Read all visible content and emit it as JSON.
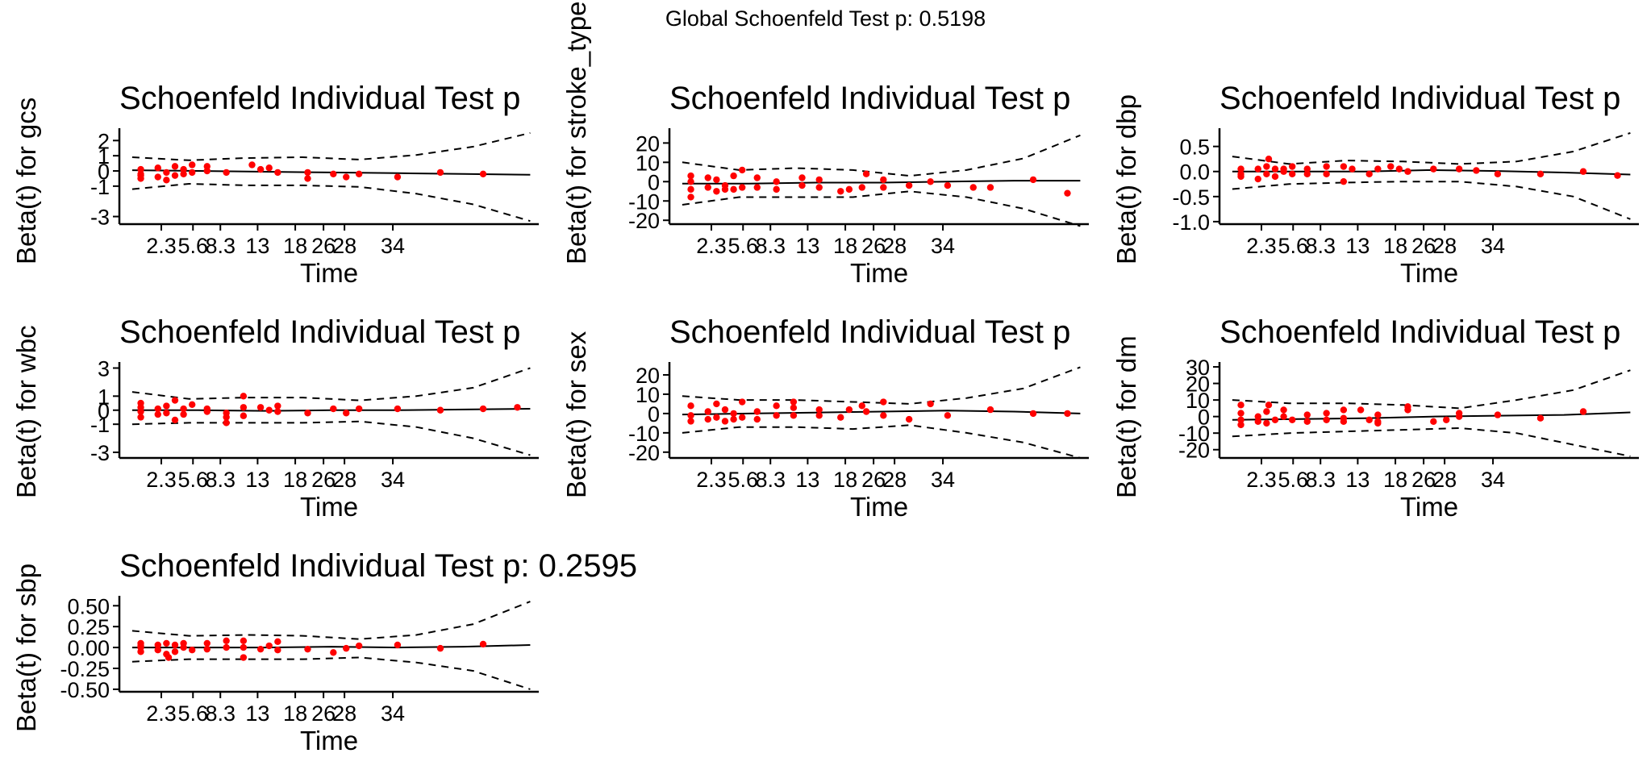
{
  "global_title": "Global Schoenfeld Test p: 0.5198",
  "chart_data": [
    {
      "type": "scatter",
      "title": "Schoenfeld Individual Test p",
      "ylabel": "Beta(t) for gcs",
      "xlabel": "Time",
      "x_ticks": [
        "2.3",
        "5.6",
        "8.3",
        "13",
        "18",
        "26",
        "28",
        "34"
      ],
      "y_ticks": [
        2,
        1,
        0,
        -1,
        -3
      ],
      "y_tick_labels": [
        "2",
        "1",
        "0",
        "-1",
        "-3"
      ],
      "ylim": [
        -3.5,
        2.6
      ],
      "fit": [
        0.05,
        0.0,
        -0.05,
        -0.1,
        -0.15,
        -0.2,
        -0.25
      ],
      "upper": [
        0.9,
        0.7,
        0.85,
        0.9,
        0.75,
        1.05,
        1.6,
        2.5
      ],
      "lower": [
        -1.2,
        -0.85,
        -0.95,
        -0.95,
        -1.05,
        -1.5,
        -2.2,
        -3.3
      ],
      "points": [
        [
          0.5,
          -0.5
        ],
        [
          0.5,
          -0.3
        ],
        [
          0.5,
          0.1
        ],
        [
          0.5,
          -0.2
        ],
        [
          0.9,
          -0.4
        ],
        [
          0.9,
          0.2
        ],
        [
          1.1,
          -0.1
        ],
        [
          1.1,
          -0.6
        ],
        [
          1.3,
          0.3
        ],
        [
          1.3,
          -0.3
        ],
        [
          1.5,
          0.1
        ],
        [
          1.5,
          -0.2
        ],
        [
          1.7,
          0.4
        ],
        [
          1.7,
          -0.1
        ],
        [
          2.05,
          0.0
        ],
        [
          2.05,
          0.3
        ],
        [
          2.5,
          -0.1
        ],
        [
          3.1,
          0.4
        ],
        [
          3.3,
          0.1
        ],
        [
          3.5,
          0.2
        ],
        [
          3.7,
          -0.1
        ],
        [
          4.4,
          -0.1
        ],
        [
          4.4,
          -0.5
        ],
        [
          5.0,
          -0.2
        ],
        [
          5.3,
          -0.4
        ],
        [
          5.6,
          -0.2
        ],
        [
          6.5,
          -0.4
        ],
        [
          7.5,
          -0.1
        ],
        [
          8.5,
          -0.2
        ]
      ]
    },
    {
      "type": "scatter",
      "title": "Schoenfeld Individual Test p",
      "ylabel": "Beta(t) for stroke_type",
      "xlabel": "Time",
      "x_ticks": [
        "2.3",
        "5.6",
        "8.3",
        "13",
        "18",
        "26",
        "28",
        "34"
      ],
      "y_ticks": [
        20,
        10,
        0,
        -10,
        -20
      ],
      "y_tick_labels": [
        "20",
        "10",
        "0",
        "-10",
        "-20"
      ],
      "ylim": [
        -22,
        26
      ],
      "fit": [
        -1.0,
        -1.0,
        -0.5,
        -0.5,
        0.0,
        0.5,
        0.5
      ],
      "upper": [
        10,
        6,
        7,
        6,
        3,
        6,
        12,
        24
      ],
      "lower": [
        -12,
        -8,
        -8,
        -8,
        -5,
        -8,
        -14,
        -23
      ],
      "points": [
        [
          0.5,
          -8
        ],
        [
          0.5,
          -4
        ],
        [
          0.5,
          0
        ],
        [
          0.5,
          3
        ],
        [
          0.9,
          2
        ],
        [
          0.9,
          -3
        ],
        [
          1.1,
          -5
        ],
        [
          1.1,
          1
        ],
        [
          1.3,
          -2
        ],
        [
          1.3,
          -4
        ],
        [
          1.5,
          3
        ],
        [
          1.5,
          -4
        ],
        [
          1.7,
          6
        ],
        [
          1.7,
          -3
        ],
        [
          2.05,
          2
        ],
        [
          2.05,
          -3
        ],
        [
          2.5,
          0
        ],
        [
          2.5,
          -4
        ],
        [
          3.1,
          -2
        ],
        [
          3.1,
          2
        ],
        [
          3.5,
          1
        ],
        [
          3.5,
          -3
        ],
        [
          4.0,
          -5
        ],
        [
          4.2,
          -4
        ],
        [
          4.5,
          -3
        ],
        [
          4.6,
          4
        ],
        [
          5.0,
          -3
        ],
        [
          5.0,
          1
        ],
        [
          5.6,
          -2
        ],
        [
          6.1,
          0
        ],
        [
          6.5,
          -2
        ],
        [
          7.1,
          -3
        ],
        [
          7.5,
          -3
        ],
        [
          8.5,
          1
        ],
        [
          9.3,
          -6
        ]
      ]
    },
    {
      "type": "scatter",
      "title": "Schoenfeld Individual Test p",
      "ylabel": "Beta(t) for dbp",
      "xlabel": "Time",
      "x_ticks": [
        "2.3",
        "5.6",
        "8.3",
        "13",
        "18",
        "26",
        "28",
        "34"
      ],
      "y_ticks": [
        0.5,
        0.0,
        -0.5,
        -1.0
      ],
      "y_tick_labels": [
        "0.5",
        "0.0",
        "-0.5",
        "-1.0"
      ],
      "ylim": [
        -1.05,
        0.8
      ],
      "fit": [
        0.0,
        0.0,
        0.0,
        0.03,
        0.01,
        -0.02,
        -0.06
      ],
      "upper": [
        0.3,
        0.15,
        0.22,
        0.2,
        0.15,
        0.2,
        0.4,
        0.77
      ],
      "lower": [
        -0.35,
        -0.25,
        -0.22,
        -0.2,
        -0.2,
        -0.3,
        -0.5,
        -0.95
      ],
      "points": [
        [
          0.5,
          -0.1
        ],
        [
          0.5,
          0.05
        ],
        [
          0.5,
          -0.05
        ],
        [
          0.9,
          -0.15
        ],
        [
          0.9,
          0.05
        ],
        [
          1.1,
          0.1
        ],
        [
          1.1,
          -0.05
        ],
        [
          1.15,
          0.25
        ],
        [
          1.3,
          -0.1
        ],
        [
          1.3,
          0.05
        ],
        [
          1.5,
          0.0
        ],
        [
          1.5,
          0.05
        ],
        [
          1.7,
          -0.05
        ],
        [
          1.7,
          0.1
        ],
        [
          2.05,
          0.05
        ],
        [
          2.05,
          -0.05
        ],
        [
          2.5,
          0.1
        ],
        [
          2.5,
          -0.05
        ],
        [
          2.9,
          0.1
        ],
        [
          2.9,
          -0.2
        ],
        [
          3.1,
          0.05
        ],
        [
          3.5,
          -0.05
        ],
        [
          3.7,
          0.05
        ],
        [
          4.0,
          0.1
        ],
        [
          4.2,
          0.05
        ],
        [
          4.4,
          0.0
        ],
        [
          5.0,
          0.05
        ],
        [
          5.6,
          0.05
        ],
        [
          6.0,
          0.02
        ],
        [
          6.5,
          -0.05
        ],
        [
          7.5,
          -0.05
        ],
        [
          8.5,
          0.0
        ],
        [
          9.3,
          -0.08
        ]
      ]
    },
    {
      "type": "scatter",
      "title": "Schoenfeld Individual Test p",
      "ylabel": "Beta(t) for wbc",
      "xlabel": "Time",
      "x_ticks": [
        "2.3",
        "5.6",
        "8.3",
        "13",
        "18",
        "26",
        "28",
        "34"
      ],
      "y_ticks": [
        3,
        1,
        0,
        -1,
        -3
      ],
      "y_tick_labels": [
        "3",
        "1",
        "0",
        "-1",
        "-3"
      ],
      "ylim": [
        -3.4,
        3.2
      ],
      "fit": [
        0.0,
        0.0,
        -0.05,
        0.0,
        0.0,
        0.05,
        0.1
      ],
      "upper": [
        1.3,
        0.8,
        0.9,
        0.9,
        0.7,
        1.0,
        1.6,
        3.0
      ],
      "lower": [
        -1.0,
        -0.9,
        -0.9,
        -0.9,
        -0.8,
        -1.2,
        -2.0,
        -3.2
      ],
      "points": [
        [
          0.5,
          -0.5
        ],
        [
          0.5,
          0.2
        ],
        [
          0.5,
          0.5
        ],
        [
          0.5,
          -0.1
        ],
        [
          0.9,
          0.1
        ],
        [
          0.9,
          -0.3
        ],
        [
          1.1,
          -0.2
        ],
        [
          1.1,
          0.3
        ],
        [
          1.3,
          0.7
        ],
        [
          1.3,
          -0.7
        ],
        [
          1.5,
          0.1
        ],
        [
          1.5,
          -0.3
        ],
        [
          1.7,
          0.4
        ],
        [
          2.05,
          0.1
        ],
        [
          2.05,
          -0.1
        ],
        [
          2.5,
          -0.2
        ],
        [
          2.5,
          -0.9
        ],
        [
          2.5,
          -0.5
        ],
        [
          2.9,
          -0.4
        ],
        [
          2.9,
          1.0
        ],
        [
          2.9,
          0.2
        ],
        [
          3.3,
          0.2
        ],
        [
          3.5,
          0.0
        ],
        [
          3.7,
          0.3
        ],
        [
          3.7,
          -0.1
        ],
        [
          4.4,
          -0.2
        ],
        [
          5.0,
          0.1
        ],
        [
          5.3,
          -0.2
        ],
        [
          5.6,
          0.1
        ],
        [
          6.5,
          0.1
        ],
        [
          7.5,
          0.0
        ],
        [
          8.5,
          0.1
        ],
        [
          9.3,
          0.2
        ]
      ]
    },
    {
      "type": "scatter",
      "title": "Schoenfeld Individual Test p",
      "ylabel": "Beta(t) for sex",
      "xlabel": "Time",
      "x_ticks": [
        "2.3",
        "5.6",
        "8.3",
        "13",
        "18",
        "26",
        "28",
        "34"
      ],
      "y_ticks": [
        20,
        10,
        0,
        -10,
        -20
      ],
      "y_tick_labels": [
        "20",
        "10",
        "0",
        "-10",
        "-20"
      ],
      "ylim": [
        -23,
        25
      ],
      "fit": [
        -0.5,
        0.0,
        0.5,
        1.0,
        1.5,
        1.0,
        0.0
      ],
      "upper": [
        9,
        7,
        7,
        6,
        5,
        8,
        13,
        24
      ],
      "lower": [
        -10,
        -7,
        -7,
        -8,
        -6,
        -10,
        -15,
        -23
      ],
      "points": [
        [
          0.5,
          -1
        ],
        [
          0.5,
          4
        ],
        [
          0.5,
          -4
        ],
        [
          0.9,
          1
        ],
        [
          0.9,
          -3
        ],
        [
          1.1,
          -2
        ],
        [
          1.1,
          5
        ],
        [
          1.3,
          2
        ],
        [
          1.3,
          -4
        ],
        [
          1.5,
          0
        ],
        [
          1.5,
          -3
        ],
        [
          1.7,
          6
        ],
        [
          1.7,
          -2
        ],
        [
          2.05,
          -3
        ],
        [
          2.05,
          1
        ],
        [
          2.5,
          4
        ],
        [
          2.5,
          -1
        ],
        [
          2.9,
          -1
        ],
        [
          2.9,
          6
        ],
        [
          2.9,
          3
        ],
        [
          3.5,
          2
        ],
        [
          3.5,
          -1
        ],
        [
          4.0,
          -2
        ],
        [
          4.2,
          2
        ],
        [
          4.5,
          4
        ],
        [
          4.6,
          1
        ],
        [
          5.0,
          -1
        ],
        [
          5.0,
          6
        ],
        [
          5.6,
          -3
        ],
        [
          6.1,
          5
        ],
        [
          6.5,
          -1
        ],
        [
          7.5,
          2
        ],
        [
          8.5,
          0
        ],
        [
          9.3,
          0
        ]
      ]
    },
    {
      "type": "scatter",
      "title": "Schoenfeld Individual Test p",
      "ylabel": "Beta(t) for dm",
      "xlabel": "Time",
      "x_ticks": [
        "2.3",
        "5.6",
        "8.3",
        "13",
        "18",
        "26",
        "28",
        "34"
      ],
      "y_ticks": [
        30,
        20,
        10,
        0,
        -10,
        -20
      ],
      "y_tick_labels": [
        "30",
        "20",
        "10",
        "0",
        "-10",
        "-20"
      ],
      "ylim": [
        -25,
        31
      ],
      "fit": [
        -2,
        -1.5,
        -1,
        0,
        0.5,
        1,
        2.5
      ],
      "upper": [
        10,
        8,
        8,
        7,
        5,
        10,
        16,
        28
      ],
      "lower": [
        -12,
        -10,
        -9,
        -8,
        -7,
        -10,
        -17,
        -24
      ],
      "points": [
        [
          0.5,
          -5
        ],
        [
          0.5,
          2
        ],
        [
          0.5,
          -2
        ],
        [
          0.5,
          7
        ],
        [
          0.9,
          -3
        ],
        [
          0.9,
          0
        ],
        [
          1.1,
          -4
        ],
        [
          1.1,
          3
        ],
        [
          1.15,
          7
        ],
        [
          1.3,
          -2
        ],
        [
          1.5,
          0
        ],
        [
          1.5,
          4
        ],
        [
          1.7,
          -2
        ],
        [
          2.05,
          -3
        ],
        [
          2.05,
          1
        ],
        [
          2.5,
          -2
        ],
        [
          2.5,
          2
        ],
        [
          2.9,
          -3
        ],
        [
          2.9,
          4
        ],
        [
          2.9,
          -1
        ],
        [
          3.3,
          4
        ],
        [
          3.5,
          -2
        ],
        [
          3.7,
          -4
        ],
        [
          3.7,
          -3
        ],
        [
          3.7,
          1
        ],
        [
          4.4,
          4
        ],
        [
          4.4,
          6
        ],
        [
          5.0,
          -3
        ],
        [
          5.3,
          -2
        ],
        [
          5.6,
          0
        ],
        [
          5.6,
          2
        ],
        [
          6.5,
          1
        ],
        [
          7.5,
          -1
        ],
        [
          8.5,
          3
        ]
      ]
    },
    {
      "type": "scatter",
      "title": "Schoenfeld Individual Test p: 0.2595",
      "ylabel": "Beta(t) for sbp",
      "xlabel": "Time",
      "x_ticks": [
        "2.3",
        "5.6",
        "8.3",
        "13",
        "18",
        "26",
        "28",
        "34"
      ],
      "y_ticks": [
        0.5,
        0.25,
        0.0,
        -0.25,
        -0.5
      ],
      "y_tick_labels": [
        "0.50",
        "0.25",
        "0.00",
        "-0.25",
        "-0.50"
      ],
      "ylim": [
        -0.53,
        0.58
      ],
      "fit": [
        0.0,
        0.0,
        0.0,
        0.01,
        0.0,
        0.01,
        0.03
      ],
      "upper": [
        0.2,
        0.14,
        0.15,
        0.14,
        0.1,
        0.15,
        0.28,
        0.55
      ],
      "lower": [
        -0.17,
        -0.14,
        -0.14,
        -0.14,
        -0.12,
        -0.18,
        -0.28,
        -0.5
      ],
      "points": [
        [
          0.5,
          -0.05
        ],
        [
          0.5,
          0.05
        ],
        [
          0.5,
          0.0
        ],
        [
          0.5,
          0.02
        ],
        [
          0.9,
          -0.03
        ],
        [
          0.9,
          0.03
        ],
        [
          1.1,
          -0.08
        ],
        [
          1.1,
          0.05
        ],
        [
          1.15,
          -0.12
        ],
        [
          1.3,
          0.03
        ],
        [
          1.3,
          -0.05
        ],
        [
          1.5,
          0.0
        ],
        [
          1.5,
          0.05
        ],
        [
          1.7,
          -0.03
        ],
        [
          2.05,
          0.05
        ],
        [
          2.05,
          -0.02
        ],
        [
          2.5,
          0.08
        ],
        [
          2.5,
          0.0
        ],
        [
          2.9,
          0.08
        ],
        [
          2.9,
          -0.12
        ],
        [
          2.9,
          0.0
        ],
        [
          3.3,
          -0.02
        ],
        [
          3.5,
          0.02
        ],
        [
          3.7,
          0.07
        ],
        [
          3.7,
          -0.03
        ],
        [
          4.4,
          -0.02
        ],
        [
          5.0,
          -0.06
        ],
        [
          5.3,
          -0.01
        ],
        [
          5.6,
          0.02
        ],
        [
          6.5,
          0.03
        ],
        [
          7.5,
          -0.01
        ],
        [
          8.5,
          0.04
        ]
      ]
    }
  ]
}
